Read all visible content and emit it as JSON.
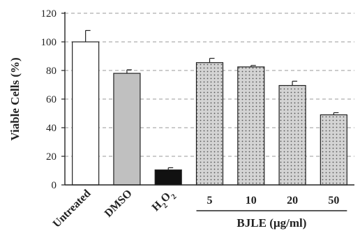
{
  "chart_data": {
    "type": "bar",
    "categories": [
      "Untreated",
      "DMSO",
      "H2O2",
      "5",
      "10",
      "20",
      "50"
    ],
    "values": [
      100,
      78,
      10.5,
      85.5,
      82.5,
      69.5,
      49
    ],
    "errors": [
      8,
      2.5,
      1.5,
      3,
      1,
      3,
      1.5
    ],
    "ylabel": "Viable Cells (%)",
    "yticks": [
      0,
      20,
      40,
      60,
      80,
      100,
      120
    ],
    "ylim": [
      0,
      120
    ],
    "grid": "horizontal dashed",
    "group_label": "BJLE (µg/ml)",
    "group_members": [
      "5",
      "10",
      "20",
      "50"
    ],
    "bar_fills": [
      "white",
      "gray",
      "black",
      "dotted",
      "dotted",
      "dotted",
      "dotted"
    ],
    "colors": {
      "gray": "#c0c0c0",
      "black": "#111111",
      "dotted_base": "#d4d4d4",
      "grid": "#999999"
    }
  }
}
